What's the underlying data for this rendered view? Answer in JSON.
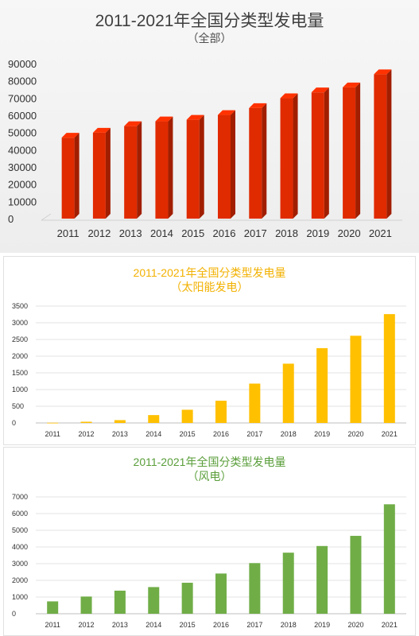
{
  "charts": [
    {
      "title": "2011-2021年全国分类型发电量",
      "subtitle": "（全部）",
      "color": "#e02a00"
    },
    {
      "title": "2011-2021年全国分类型发电量",
      "subtitle": "（太阳能发电）",
      "color": "#ffc000"
    },
    {
      "title": "2011-2021年全国分类型发电量",
      "subtitle": "（风电）",
      "color": "#70ad47"
    }
  ],
  "chart_data": [
    {
      "type": "bar",
      "title": "2011-2021年全国分类型发电量",
      "subtitle": "（全部）",
      "categories": [
        "2011",
        "2012",
        "2013",
        "2014",
        "2015",
        "2016",
        "2017",
        "2018",
        "2019",
        "2020",
        "2021"
      ],
      "values": [
        47000,
        49900,
        53700,
        56500,
        57400,
        60200,
        64200,
        69900,
        73300,
        76200,
        83800
      ],
      "ylim": [
        0,
        90000
      ],
      "yticks": [
        "0",
        "10000",
        "20000",
        "30000",
        "40000",
        "50000",
        "60000",
        "70000",
        "80000",
        "90000"
      ],
      "style": "3d",
      "grid": false
    },
    {
      "type": "bar",
      "title": "2011-2021年全国分类型发电量",
      "subtitle": "（太阳能发电）",
      "categories": [
        "2011",
        "2012",
        "2013",
        "2014",
        "2015",
        "2016",
        "2017",
        "2018",
        "2019",
        "2020",
        "2021"
      ],
      "values": [
        6,
        36,
        84,
        235,
        395,
        665,
        1178,
        1775,
        2240,
        2611,
        3259
      ],
      "ylim": [
        0,
        3500
      ],
      "yticks": [
        "0",
        "500",
        "1000",
        "1500",
        "2000",
        "2500",
        "3000",
        "3500"
      ],
      "grid": true
    },
    {
      "type": "bar",
      "title": "2011-2021年全国分类型发电量",
      "subtitle": "（风电）",
      "categories": [
        "2011",
        "2012",
        "2013",
        "2014",
        "2015",
        "2016",
        "2017",
        "2018",
        "2019",
        "2020",
        "2021"
      ],
      "values": [
        741,
        1030,
        1383,
        1598,
        1856,
        2409,
        3034,
        3658,
        4057,
        4665,
        6556
      ],
      "ylim": [
        0,
        7000
      ],
      "yticks": [
        "0",
        "1000",
        "2000",
        "3000",
        "4000",
        "5000",
        "6000",
        "7000"
      ],
      "grid": true
    }
  ]
}
